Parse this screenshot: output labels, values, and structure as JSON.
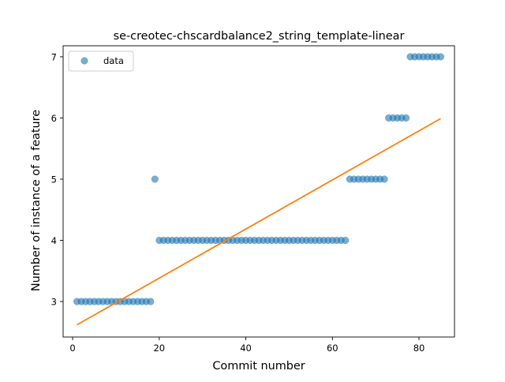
{
  "chart_data": {
    "type": "scatter",
    "title": "se-creotec-chscardbalance2_string_template-linear",
    "xlabel": "Commit number",
    "ylabel": "Number of instance of a feature",
    "xlim": [
      -2.2,
      88.2
    ],
    "ylim": [
      2.42,
      7.18
    ],
    "x_ticks": [
      0,
      20,
      40,
      60,
      80
    ],
    "y_ticks": [
      3,
      4,
      5,
      6,
      7
    ],
    "legend": {
      "placement": "top-left",
      "entries": [
        "data"
      ]
    },
    "grid": false,
    "series": [
      {
        "name": "data",
        "kind": "scatter",
        "color": "#1f77b4",
        "points": [
          [
            1,
            3
          ],
          [
            2,
            3
          ],
          [
            3,
            3
          ],
          [
            4,
            3
          ],
          [
            5,
            3
          ],
          [
            6,
            3
          ],
          [
            7,
            3
          ],
          [
            8,
            3
          ],
          [
            9,
            3
          ],
          [
            10,
            3
          ],
          [
            11,
            3
          ],
          [
            12,
            3
          ],
          [
            13,
            3
          ],
          [
            14,
            3
          ],
          [
            15,
            3
          ],
          [
            16,
            3
          ],
          [
            17,
            3
          ],
          [
            18,
            3
          ],
          [
            19,
            5
          ],
          [
            20,
            4
          ],
          [
            21,
            4
          ],
          [
            22,
            4
          ],
          [
            23,
            4
          ],
          [
            24,
            4
          ],
          [
            25,
            4
          ],
          [
            26,
            4
          ],
          [
            27,
            4
          ],
          [
            28,
            4
          ],
          [
            29,
            4
          ],
          [
            30,
            4
          ],
          [
            31,
            4
          ],
          [
            32,
            4
          ],
          [
            33,
            4
          ],
          [
            34,
            4
          ],
          [
            35,
            4
          ],
          [
            36,
            4
          ],
          [
            37,
            4
          ],
          [
            38,
            4
          ],
          [
            39,
            4
          ],
          [
            40,
            4
          ],
          [
            41,
            4
          ],
          [
            42,
            4
          ],
          [
            43,
            4
          ],
          [
            44,
            4
          ],
          [
            45,
            4
          ],
          [
            46,
            4
          ],
          [
            47,
            4
          ],
          [
            48,
            4
          ],
          [
            49,
            4
          ],
          [
            50,
            4
          ],
          [
            51,
            4
          ],
          [
            52,
            4
          ],
          [
            53,
            4
          ],
          [
            54,
            4
          ],
          [
            55,
            4
          ],
          [
            56,
            4
          ],
          [
            57,
            4
          ],
          [
            58,
            4
          ],
          [
            59,
            4
          ],
          [
            60,
            4
          ],
          [
            61,
            4
          ],
          [
            62,
            4
          ],
          [
            63,
            4
          ],
          [
            64,
            5
          ],
          [
            65,
            5
          ],
          [
            66,
            5
          ],
          [
            67,
            5
          ],
          [
            68,
            5
          ],
          [
            69,
            5
          ],
          [
            70,
            5
          ],
          [
            71,
            5
          ],
          [
            72,
            5
          ],
          [
            73,
            6
          ],
          [
            74,
            6
          ],
          [
            75,
            6
          ],
          [
            76,
            6
          ],
          [
            77,
            6
          ],
          [
            78,
            7
          ],
          [
            79,
            7
          ],
          [
            80,
            7
          ],
          [
            81,
            7
          ],
          [
            82,
            7
          ],
          [
            83,
            7
          ],
          [
            84,
            7
          ],
          [
            85,
            7
          ]
        ]
      },
      {
        "kind": "line",
        "color": "#ff7f0e",
        "points": [
          [
            1,
            2.62
          ],
          [
            85,
            5.99
          ]
        ]
      }
    ]
  }
}
